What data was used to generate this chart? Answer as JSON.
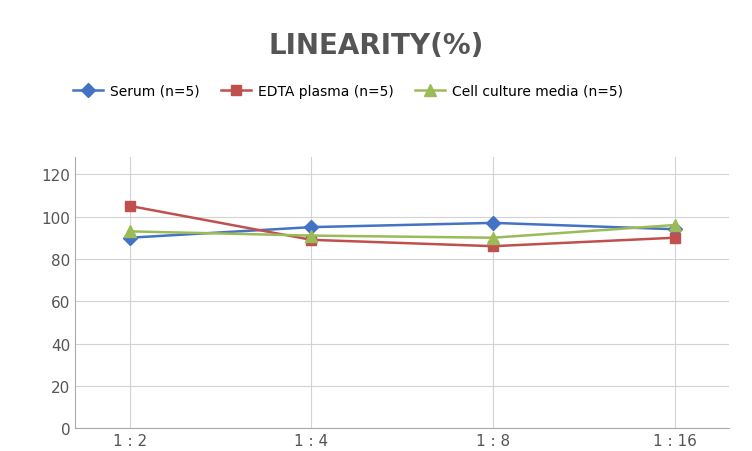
{
  "title": "LINEARITY(%)",
  "title_fontsize": 20,
  "title_fontweight": "bold",
  "title_color": "#555555",
  "x_labels": [
    "1 : 2",
    "1 : 4",
    "1 : 8",
    "1 : 16"
  ],
  "x_positions": [
    0,
    1,
    2,
    3
  ],
  "series": [
    {
      "label": "Serum (n=5)",
      "values": [
        90,
        95,
        97,
        94
      ],
      "color": "#4472C4",
      "marker": "D",
      "marker_size": 7,
      "linewidth": 1.8
    },
    {
      "label": "EDTA plasma (n=5)",
      "values": [
        105,
        89,
        86,
        90
      ],
      "color": "#C0504D",
      "marker": "s",
      "marker_size": 7,
      "linewidth": 1.8
    },
    {
      "label": "Cell culture media (n=5)",
      "values": [
        93,
        91,
        90,
        96
      ],
      "color": "#9BBB59",
      "marker": "^",
      "marker_size": 8,
      "linewidth": 1.8
    }
  ],
  "ylim": [
    0,
    128
  ],
  "yticks": [
    0,
    20,
    40,
    60,
    80,
    100,
    120
  ],
  "grid_color": "#D3D3D3",
  "background_color": "#FFFFFF",
  "legend_fontsize": 10,
  "axis_fontsize": 11
}
